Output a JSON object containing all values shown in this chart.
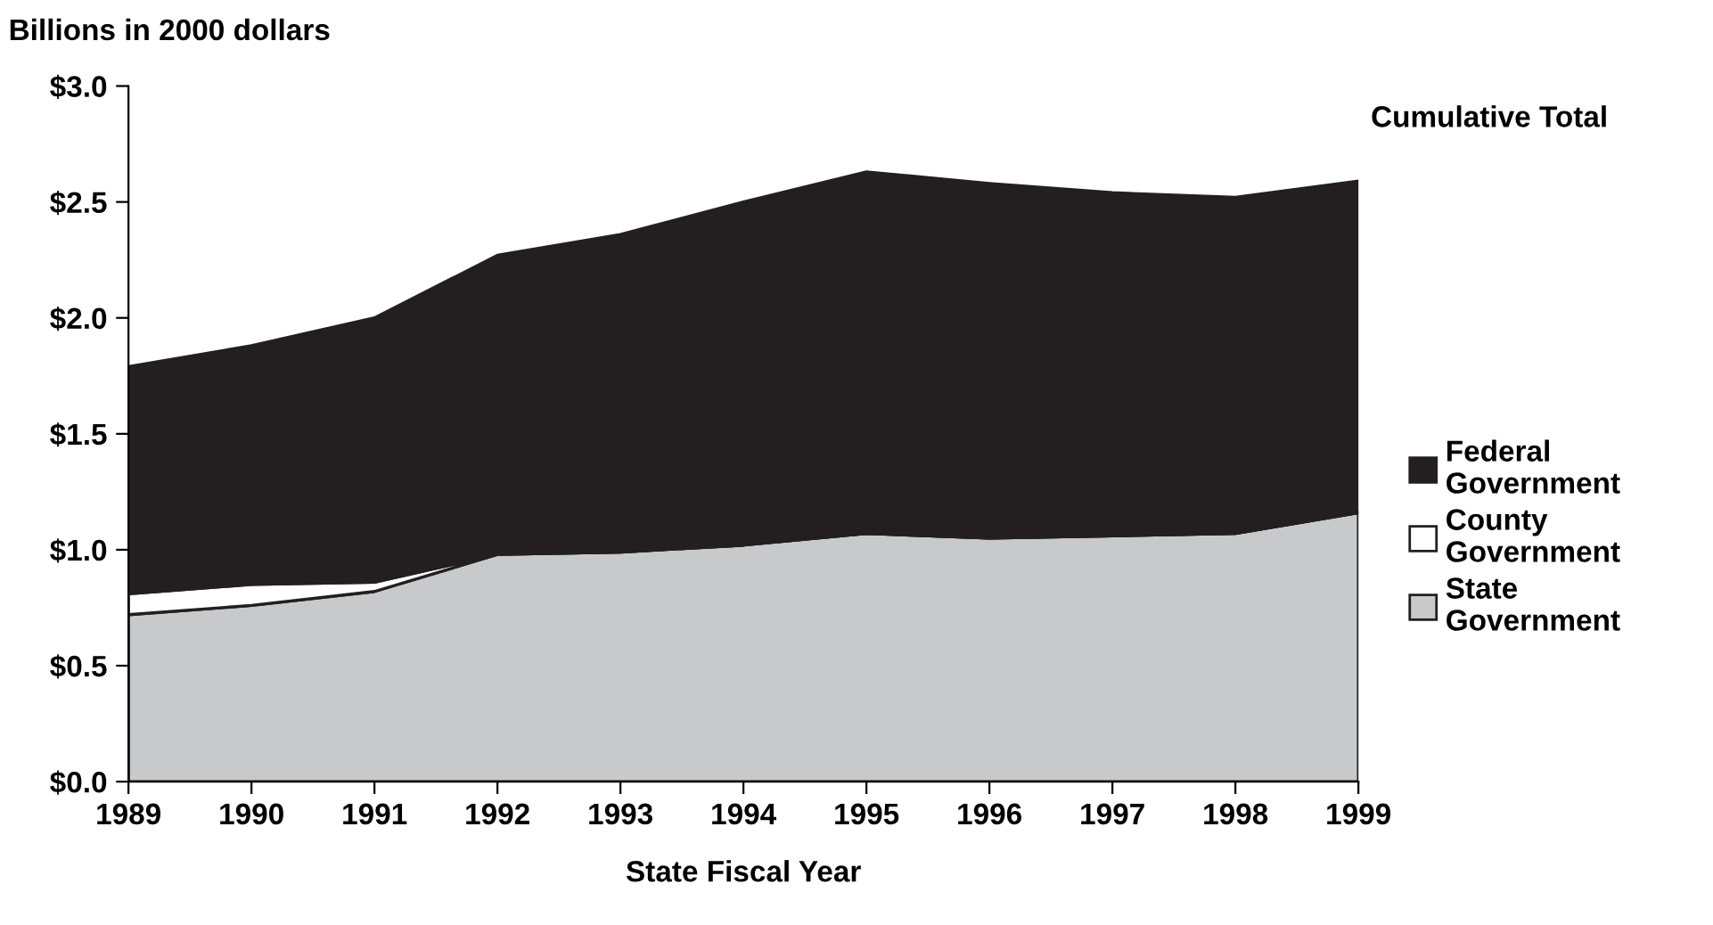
{
  "chart_data": {
    "type": "area",
    "stacked": true,
    "ylabel": "Billions in 2000 dollars",
    "xlabel": "State Fiscal Year",
    "categories": [
      "1989",
      "1990",
      "1991",
      "1992",
      "1993",
      "1994",
      "1995",
      "1996",
      "1997",
      "1998",
      "1999"
    ],
    "series": [
      {
        "name": "State Government",
        "color": "#c8c9cb",
        "values": [
          0.72,
          0.76,
          0.82,
          0.98,
          0.99,
          1.02,
          1.07,
          1.05,
          1.06,
          1.07,
          1.16
        ]
      },
      {
        "name": "County Government",
        "color": "#ffffff",
        "values": [
          0.09,
          0.09,
          0.04,
          0,
          0,
          0,
          0,
          0,
          0,
          0,
          0
        ]
      },
      {
        "name": "Federal Government",
        "color": "#231f20",
        "values": [
          0.98,
          1.03,
          1.14,
          1.29,
          1.37,
          1.48,
          1.56,
          1.53,
          1.48,
          1.45,
          1.43
        ]
      }
    ],
    "ylim": [
      0,
      3.0
    ],
    "yticks": [
      {
        "value": 0,
        "label": "$0.0"
      },
      {
        "value": 0.5,
        "label": "$0.5"
      },
      {
        "value": 1.0,
        "label": "$1.0"
      },
      {
        "value": 1.5,
        "label": "$1.5"
      },
      {
        "value": 2.0,
        "label": "$2.0"
      },
      {
        "value": 2.5,
        "label": "$2.5"
      },
      {
        "value": 3.0,
        "label": "$3.0"
      }
    ],
    "grid": false,
    "legend": "right",
    "annotations": [
      {
        "text": "Cumulative Total",
        "x": "1999",
        "y": 2.59
      }
    ]
  }
}
